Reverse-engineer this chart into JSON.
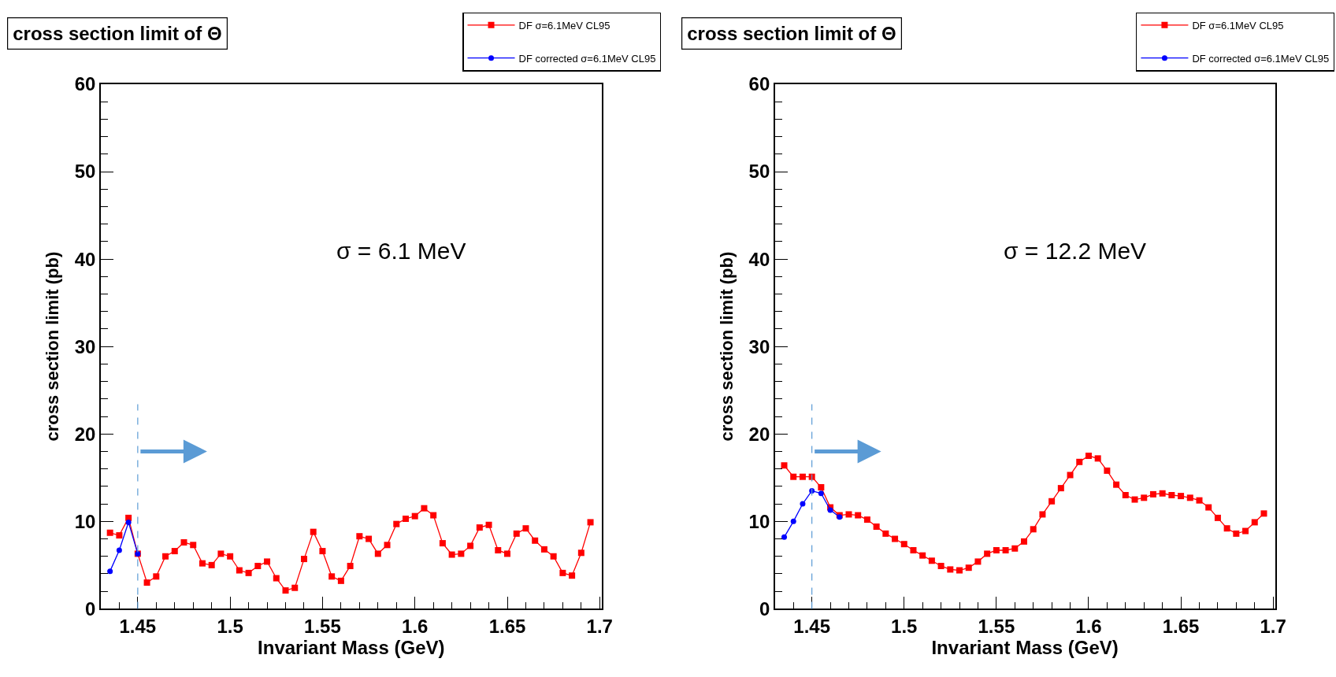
{
  "chart_data": [
    {
      "type": "line",
      "title": "cross section limit of Θ",
      "xlabel": "Invariant Mass (GeV)",
      "ylabel": "cross section limit (pb)",
      "x": [
        1.435,
        1.44,
        1.445,
        1.45,
        1.455,
        1.46,
        1.465,
        1.47,
        1.475,
        1.48,
        1.485,
        1.49,
        1.495,
        1.5,
        1.505,
        1.51,
        1.515,
        1.52,
        1.525,
        1.53,
        1.535,
        1.54,
        1.545,
        1.55,
        1.555,
        1.56,
        1.565,
        1.57,
        1.575,
        1.58,
        1.585,
        1.59,
        1.595,
        1.6,
        1.605,
        1.61,
        1.615,
        1.62,
        1.625,
        1.63,
        1.635,
        1.64,
        1.645,
        1.65,
        1.655,
        1.66,
        1.665,
        1.67,
        1.675,
        1.68,
        1.685,
        1.69,
        1.695
      ],
      "series": [
        {
          "name": "DF σ=6.1MeV CL95",
          "color": "#ff0000",
          "marker": "square",
          "values": [
            8.7,
            8.4,
            10.4,
            6.3,
            3.0,
            3.7,
            6.0,
            6.6,
            7.6,
            7.3,
            5.2,
            5.0,
            6.3,
            6.0,
            4.4,
            4.1,
            4.9,
            5.4,
            3.5,
            2.1,
            2.4,
            5.7,
            8.8,
            6.6,
            3.7,
            3.2,
            4.9,
            8.3,
            8.0,
            6.3,
            7.3,
            9.7,
            10.3,
            10.6,
            11.5,
            10.7,
            7.5,
            6.2,
            6.3,
            7.2,
            9.3,
            9.6,
            6.7,
            6.3,
            8.6,
            9.2,
            7.8,
            6.8,
            6.0,
            4.1,
            3.8,
            6.4,
            9.9
          ]
        },
        {
          "name": "DF corrected σ=6.1MeV CL95",
          "color": "#0000ff",
          "marker": "circle",
          "values": [
            4.3,
            6.7,
            9.9,
            6.3,
            null,
            null,
            null,
            null,
            null,
            null,
            null,
            null,
            null,
            null,
            null,
            null,
            null,
            null,
            null,
            null,
            null,
            null,
            null,
            null,
            null,
            null,
            null,
            null,
            null,
            null,
            null,
            null,
            null,
            null,
            null,
            null,
            null,
            null,
            null,
            null,
            null,
            null,
            null,
            null,
            null,
            null,
            null,
            null,
            null,
            null,
            null,
            null,
            null
          ]
        }
      ],
      "xlim": [
        1.43,
        1.701
      ],
      "xticks": [
        1.45,
        1.5,
        1.55,
        1.6,
        1.65,
        1.7
      ],
      "ylim": [
        0,
        60
      ],
      "yticks": [
        0,
        10,
        20,
        30,
        40,
        50,
        60
      ],
      "ref_lines": [
        {
          "axis": "x",
          "value": 1.45,
          "color": "#5b9bd5",
          "line_style": "dashed"
        }
      ],
      "annotations": [
        "σ = 6.1 MeV"
      ],
      "legend": "top right",
      "line_style": "solid"
    },
    {
      "type": "line",
      "title": "cross section limit of Θ",
      "xlabel": "Invariant Mass (GeV)",
      "ylabel": "cross section limit (pb)",
      "x": [
        1.435,
        1.44,
        1.445,
        1.45,
        1.455,
        1.46,
        1.465,
        1.47,
        1.475,
        1.48,
        1.485,
        1.49,
        1.495,
        1.5,
        1.505,
        1.51,
        1.515,
        1.52,
        1.525,
        1.53,
        1.535,
        1.54,
        1.545,
        1.55,
        1.555,
        1.56,
        1.565,
        1.57,
        1.575,
        1.58,
        1.585,
        1.59,
        1.595,
        1.6,
        1.605,
        1.61,
        1.615,
        1.62,
        1.625,
        1.63,
        1.635,
        1.64,
        1.645,
        1.65,
        1.655,
        1.66,
        1.665,
        1.67,
        1.675,
        1.68,
        1.685,
        1.69,
        1.695
      ],
      "series": [
        {
          "name": "DF σ=6.1MeV CL95",
          "color": "#ff0000",
          "marker": "square",
          "values": [
            16.4,
            15.1,
            15.1,
            15.1,
            13.9,
            11.6,
            10.7,
            10.8,
            10.7,
            10.2,
            9.4,
            8.6,
            8.0,
            7.4,
            6.7,
            6.1,
            5.5,
            4.9,
            4.5,
            4.4,
            4.7,
            5.4,
            6.3,
            6.7,
            6.7,
            6.9,
            7.7,
            9.1,
            10.8,
            12.3,
            13.8,
            15.3,
            16.8,
            17.5,
            17.2,
            15.8,
            14.2,
            13.0,
            12.5,
            12.7,
            13.1,
            13.2,
            13.0,
            12.9,
            12.7,
            12.4,
            11.6,
            10.4,
            9.2,
            8.6,
            8.9,
            9.9,
            10.9
          ]
        },
        {
          "name": "DF corrected σ=6.1MeV CL95",
          "color": "#0000ff",
          "marker": "circle",
          "values": [
            8.2,
            10.0,
            12.0,
            13.5,
            13.2,
            11.3,
            10.5,
            null,
            null,
            null,
            null,
            null,
            null,
            null,
            null,
            null,
            null,
            null,
            null,
            null,
            null,
            null,
            null,
            null,
            null,
            null,
            null,
            null,
            null,
            null,
            null,
            null,
            null,
            null,
            null,
            null,
            null,
            null,
            null,
            null,
            null,
            null,
            null,
            null,
            null,
            null,
            null,
            null,
            null,
            null,
            null,
            null,
            null
          ]
        }
      ],
      "xlim": [
        1.43,
        1.701
      ],
      "xticks": [
        1.45,
        1.5,
        1.55,
        1.6,
        1.65,
        1.7
      ],
      "ylim": [
        0,
        60
      ],
      "yticks": [
        0,
        10,
        20,
        30,
        40,
        50,
        60
      ],
      "ref_lines": [
        {
          "axis": "x",
          "value": 1.45,
          "color": "#5b9bd5",
          "line_style": "dashed"
        }
      ],
      "annotations": [
        "σ = 12.2 MeV"
      ],
      "legend": "top right",
      "line_style": "solid"
    }
  ]
}
